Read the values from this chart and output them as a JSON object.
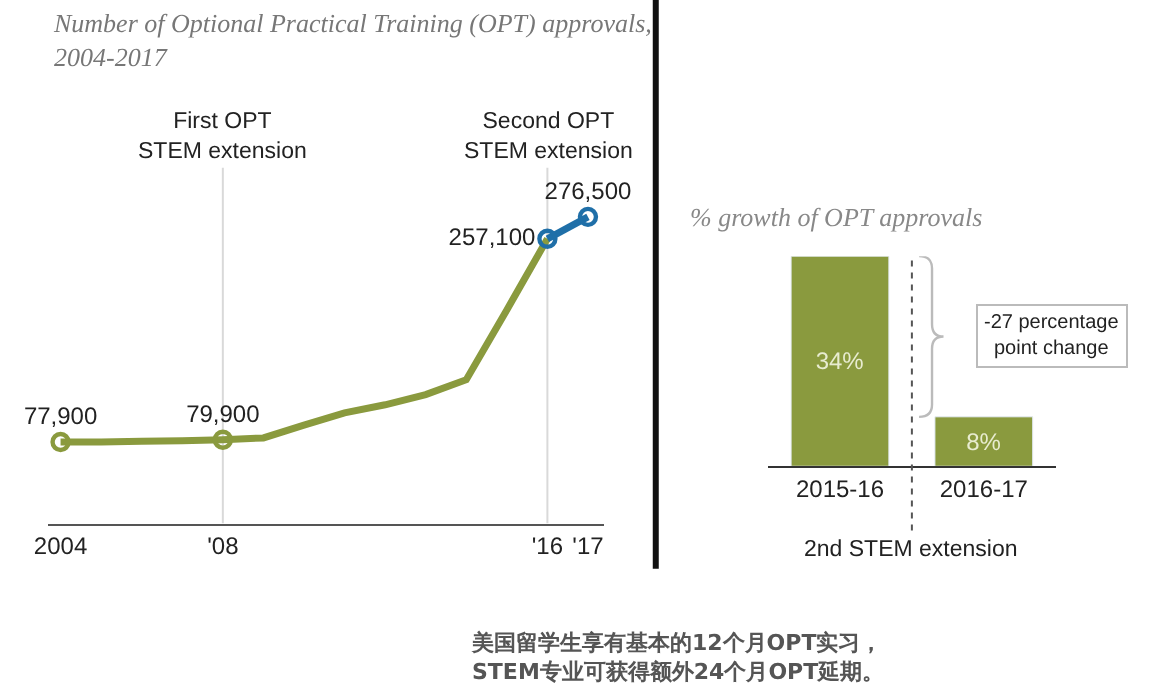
{
  "chart_data": [
    {
      "type": "line",
      "title": "Number of Optional Practical Training (OPT) approvals, 2004-2017",
      "series": [
        {
          "type": "line",
          "color": "#8a9a3e",
          "marker": "none",
          "x": [
            2004,
            2005,
            2006,
            2007,
            2008,
            2009,
            2010,
            2011,
            2012,
            2013,
            2014,
            2015,
            2016
          ],
          "values": [
            77900,
            78000,
            78500,
            79000,
            79900,
            81500,
            92800,
            103600,
            110700,
            119700,
            132800,
            194400,
            257100
          ]
        },
        {
          "type": "scatter",
          "color": "#8a9a3e",
          "marker": "circle",
          "x": [
            2004,
            2008
          ],
          "values": [
            77900,
            79900
          ],
          "value_labels": [
            "77,900",
            "79,900"
          ]
        },
        {
          "type": "line",
          "color": "#1f6fa8",
          "marker": "circle",
          "x": [
            2016,
            2017
          ],
          "values": [
            257100,
            276500
          ],
          "value_labels": [
            "257,100",
            "276,500"
          ]
        }
      ],
      "xlim": [
        2003.7,
        2017.4
      ],
      "xticks": [
        {
          "value": 2004,
          "label": "2004"
        },
        {
          "value": 2008,
          "label": "'08"
        },
        {
          "value": 2016,
          "label": "'16"
        },
        {
          "value": 2017,
          "label": "'17"
        }
      ],
      "ylim": [
        6000,
        320000
      ],
      "tick_labels": "x",
      "ref_lines": [
        {
          "axis": "x",
          "value": 2008,
          "label": "First OPT STEM extension",
          "color": "#d9d9d9"
        },
        {
          "axis": "x",
          "value": 2016,
          "label": "Second OPT STEM extension",
          "color": "#d9d9d9"
        }
      ],
      "annotations": [
        "美国留学生享有基本的12个月OPT实习，\nSTEM专业可获得额外24个月OPT延期。"
      ]
    },
    {
      "type": "bar",
      "title": "% growth of OPT approvals",
      "categories": [
        "2015-16",
        "2016-17"
      ],
      "values": [
        34,
        8
      ],
      "color": "#8a9a3e",
      "value_labels": [
        "34%",
        "8%"
      ],
      "ylim": [
        0,
        34
      ],
      "tick_labels": "x",
      "annotations": [
        "-27 percentage point change",
        "2nd STEM extension"
      ]
    }
  ]
}
